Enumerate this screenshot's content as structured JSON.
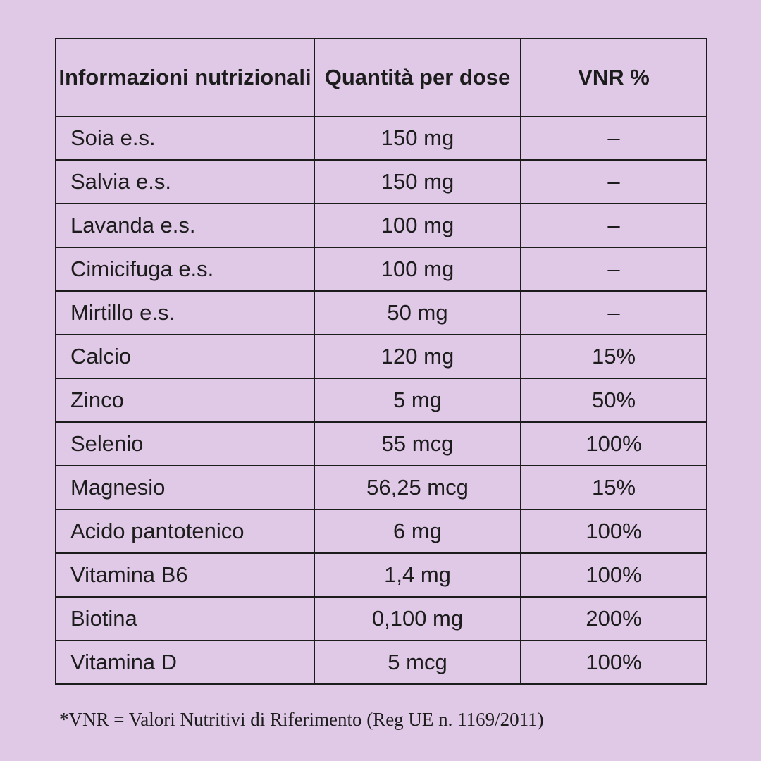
{
  "table": {
    "headers": {
      "name": "Informazioni nutrizionali",
      "quantity": "Quantità per dose",
      "vnr": "VNR %"
    },
    "rows": [
      {
        "name": "Soia e.s.",
        "quantity": "150 mg",
        "vnr": "–"
      },
      {
        "name": "Salvia e.s.",
        "quantity": "150 mg",
        "vnr": "–"
      },
      {
        "name": "Lavanda e.s.",
        "quantity": "100 mg",
        "vnr": "–"
      },
      {
        "name": "Cimicifuga e.s.",
        "quantity": "100 mg",
        "vnr": "–"
      },
      {
        "name": "Mirtillo e.s.",
        "quantity": "50 mg",
        "vnr": "–"
      },
      {
        "name": "Calcio",
        "quantity": "120 mg",
        "vnr": "15%"
      },
      {
        "name": "Zinco",
        "quantity": "5 mg",
        "vnr": "50%"
      },
      {
        "name": "Selenio",
        "quantity": "55 mcg",
        "vnr": "100%"
      },
      {
        "name": "Magnesio",
        "quantity": "56,25 mcg",
        "vnr": "15%"
      },
      {
        "name": "Acido pantotenico",
        "quantity": "6 mg",
        "vnr": "100%"
      },
      {
        "name": "Vitamina B6",
        "quantity": "1,4 mg",
        "vnr": "100%"
      },
      {
        "name": "Biotina",
        "quantity": "0,100 mg",
        "vnr": "200%"
      },
      {
        "name": "Vitamina D",
        "quantity": "5 mcg",
        "vnr": "100%"
      }
    ]
  },
  "footnote": "*VNR = Valori Nutritivi di Riferimento (Reg UE n. 1169/2011)",
  "colors": {
    "background": "#e0c9e6",
    "text": "#1c1c1c",
    "border": "#1c1c1c"
  }
}
